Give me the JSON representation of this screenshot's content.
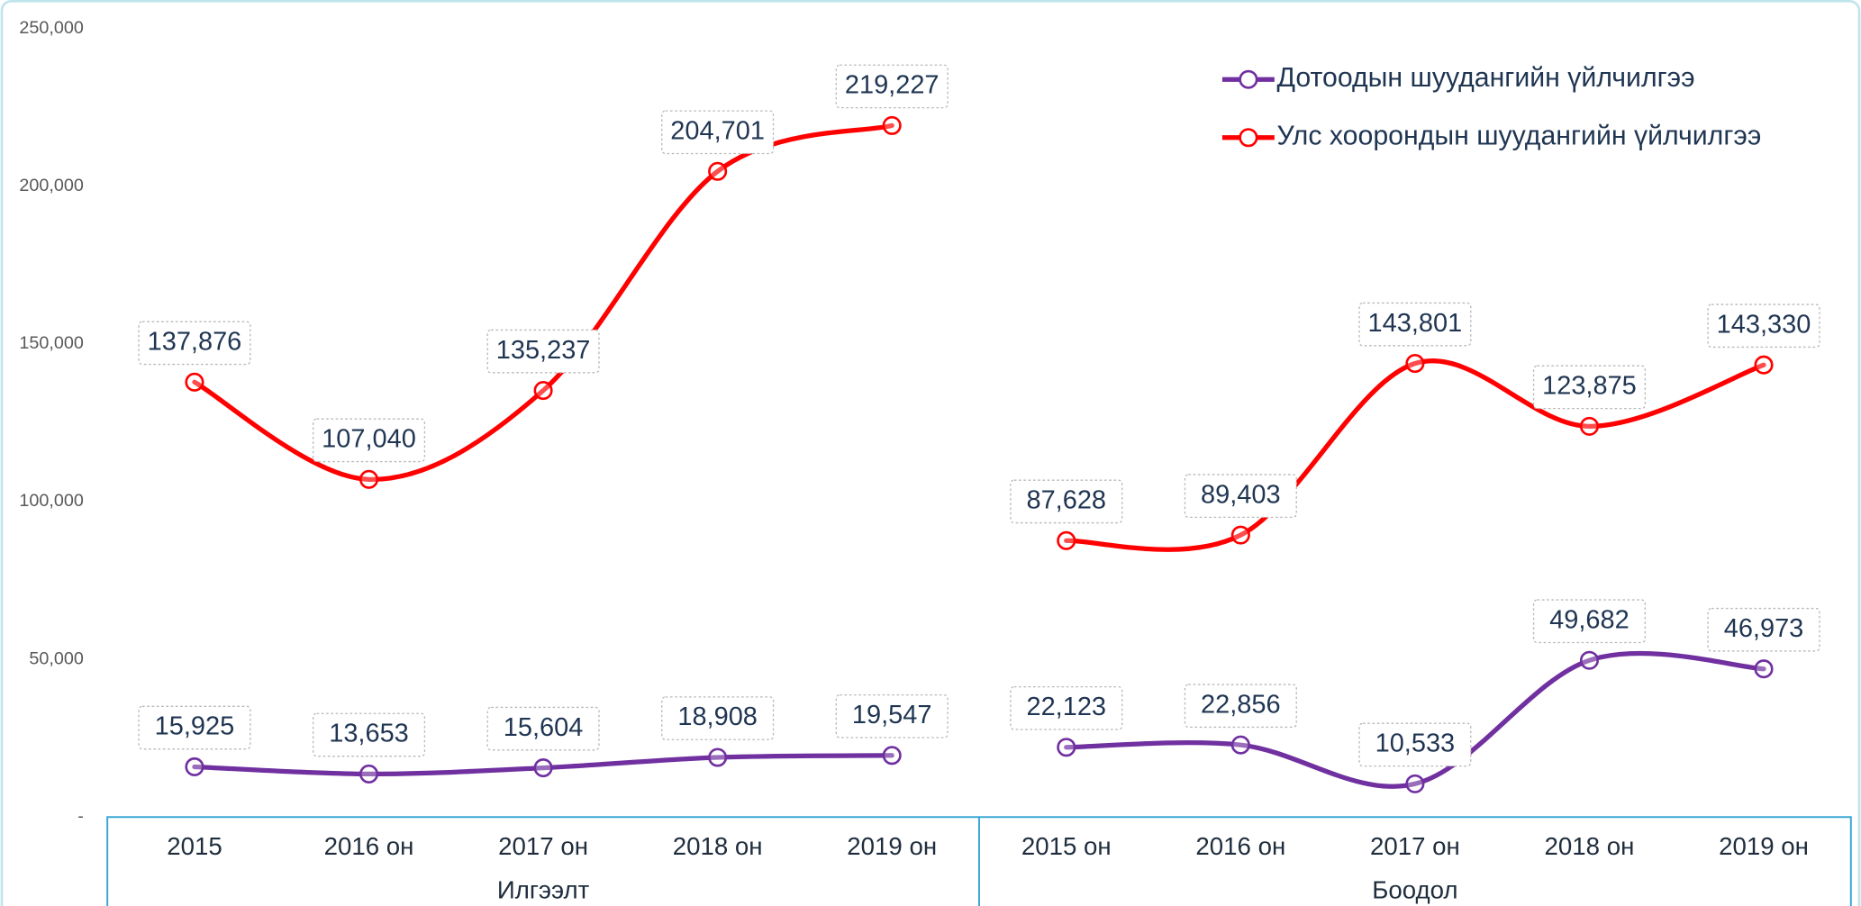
{
  "chart_data": {
    "type": "line",
    "groups": [
      {
        "name": "Илгээлт",
        "categories": [
          "2015",
          "2016 он",
          "2017 он",
          "2018 он",
          "2019 он"
        ]
      },
      {
        "name": "Боодол",
        "categories": [
          "2015 он",
          "2016 он",
          "2017 он",
          "2018 он",
          "2019 он"
        ]
      }
    ],
    "series": [
      {
        "name": "Дотоодын шуудангийн үйлчилгээ",
        "color": "#7030a0",
        "values": [
          [
            15925,
            13653,
            15604,
            18908,
            19547
          ],
          [
            22123,
            22856,
            10533,
            49682,
            46973
          ]
        ],
        "value_labels": [
          [
            "15,925",
            "13,653",
            "15,604",
            "18,908",
            "19,547"
          ],
          [
            "22,123",
            "22,856",
            "10,533",
            "49,682",
            "46,973"
          ]
        ]
      },
      {
        "name": "Улс хоорондын шуудангийн үйлчилгээ",
        "color": "#ff0000",
        "values": [
          [
            137876,
            107040,
            135237,
            204701,
            219227
          ],
          [
            87628,
            89403,
            143801,
            123875,
            143330
          ]
        ],
        "value_labels": [
          [
            "137,876",
            "107,040",
            "135,237",
            "204,701",
            "219,227"
          ],
          [
            "87,628",
            "89,403",
            "143,801",
            "123,875",
            "143,330"
          ]
        ]
      }
    ],
    "ylim": [
      0,
      250000
    ],
    "yticks": [
      {
        "value": 0,
        "label": "-"
      },
      {
        "value": 50000,
        "label": "50,000"
      },
      {
        "value": 100000,
        "label": "100,000"
      },
      {
        "value": 150000,
        "label": "150,000"
      },
      {
        "value": 200000,
        "label": "200,000"
      },
      {
        "value": 250000,
        "label": "250,000"
      }
    ],
    "legend": "top-right"
  }
}
